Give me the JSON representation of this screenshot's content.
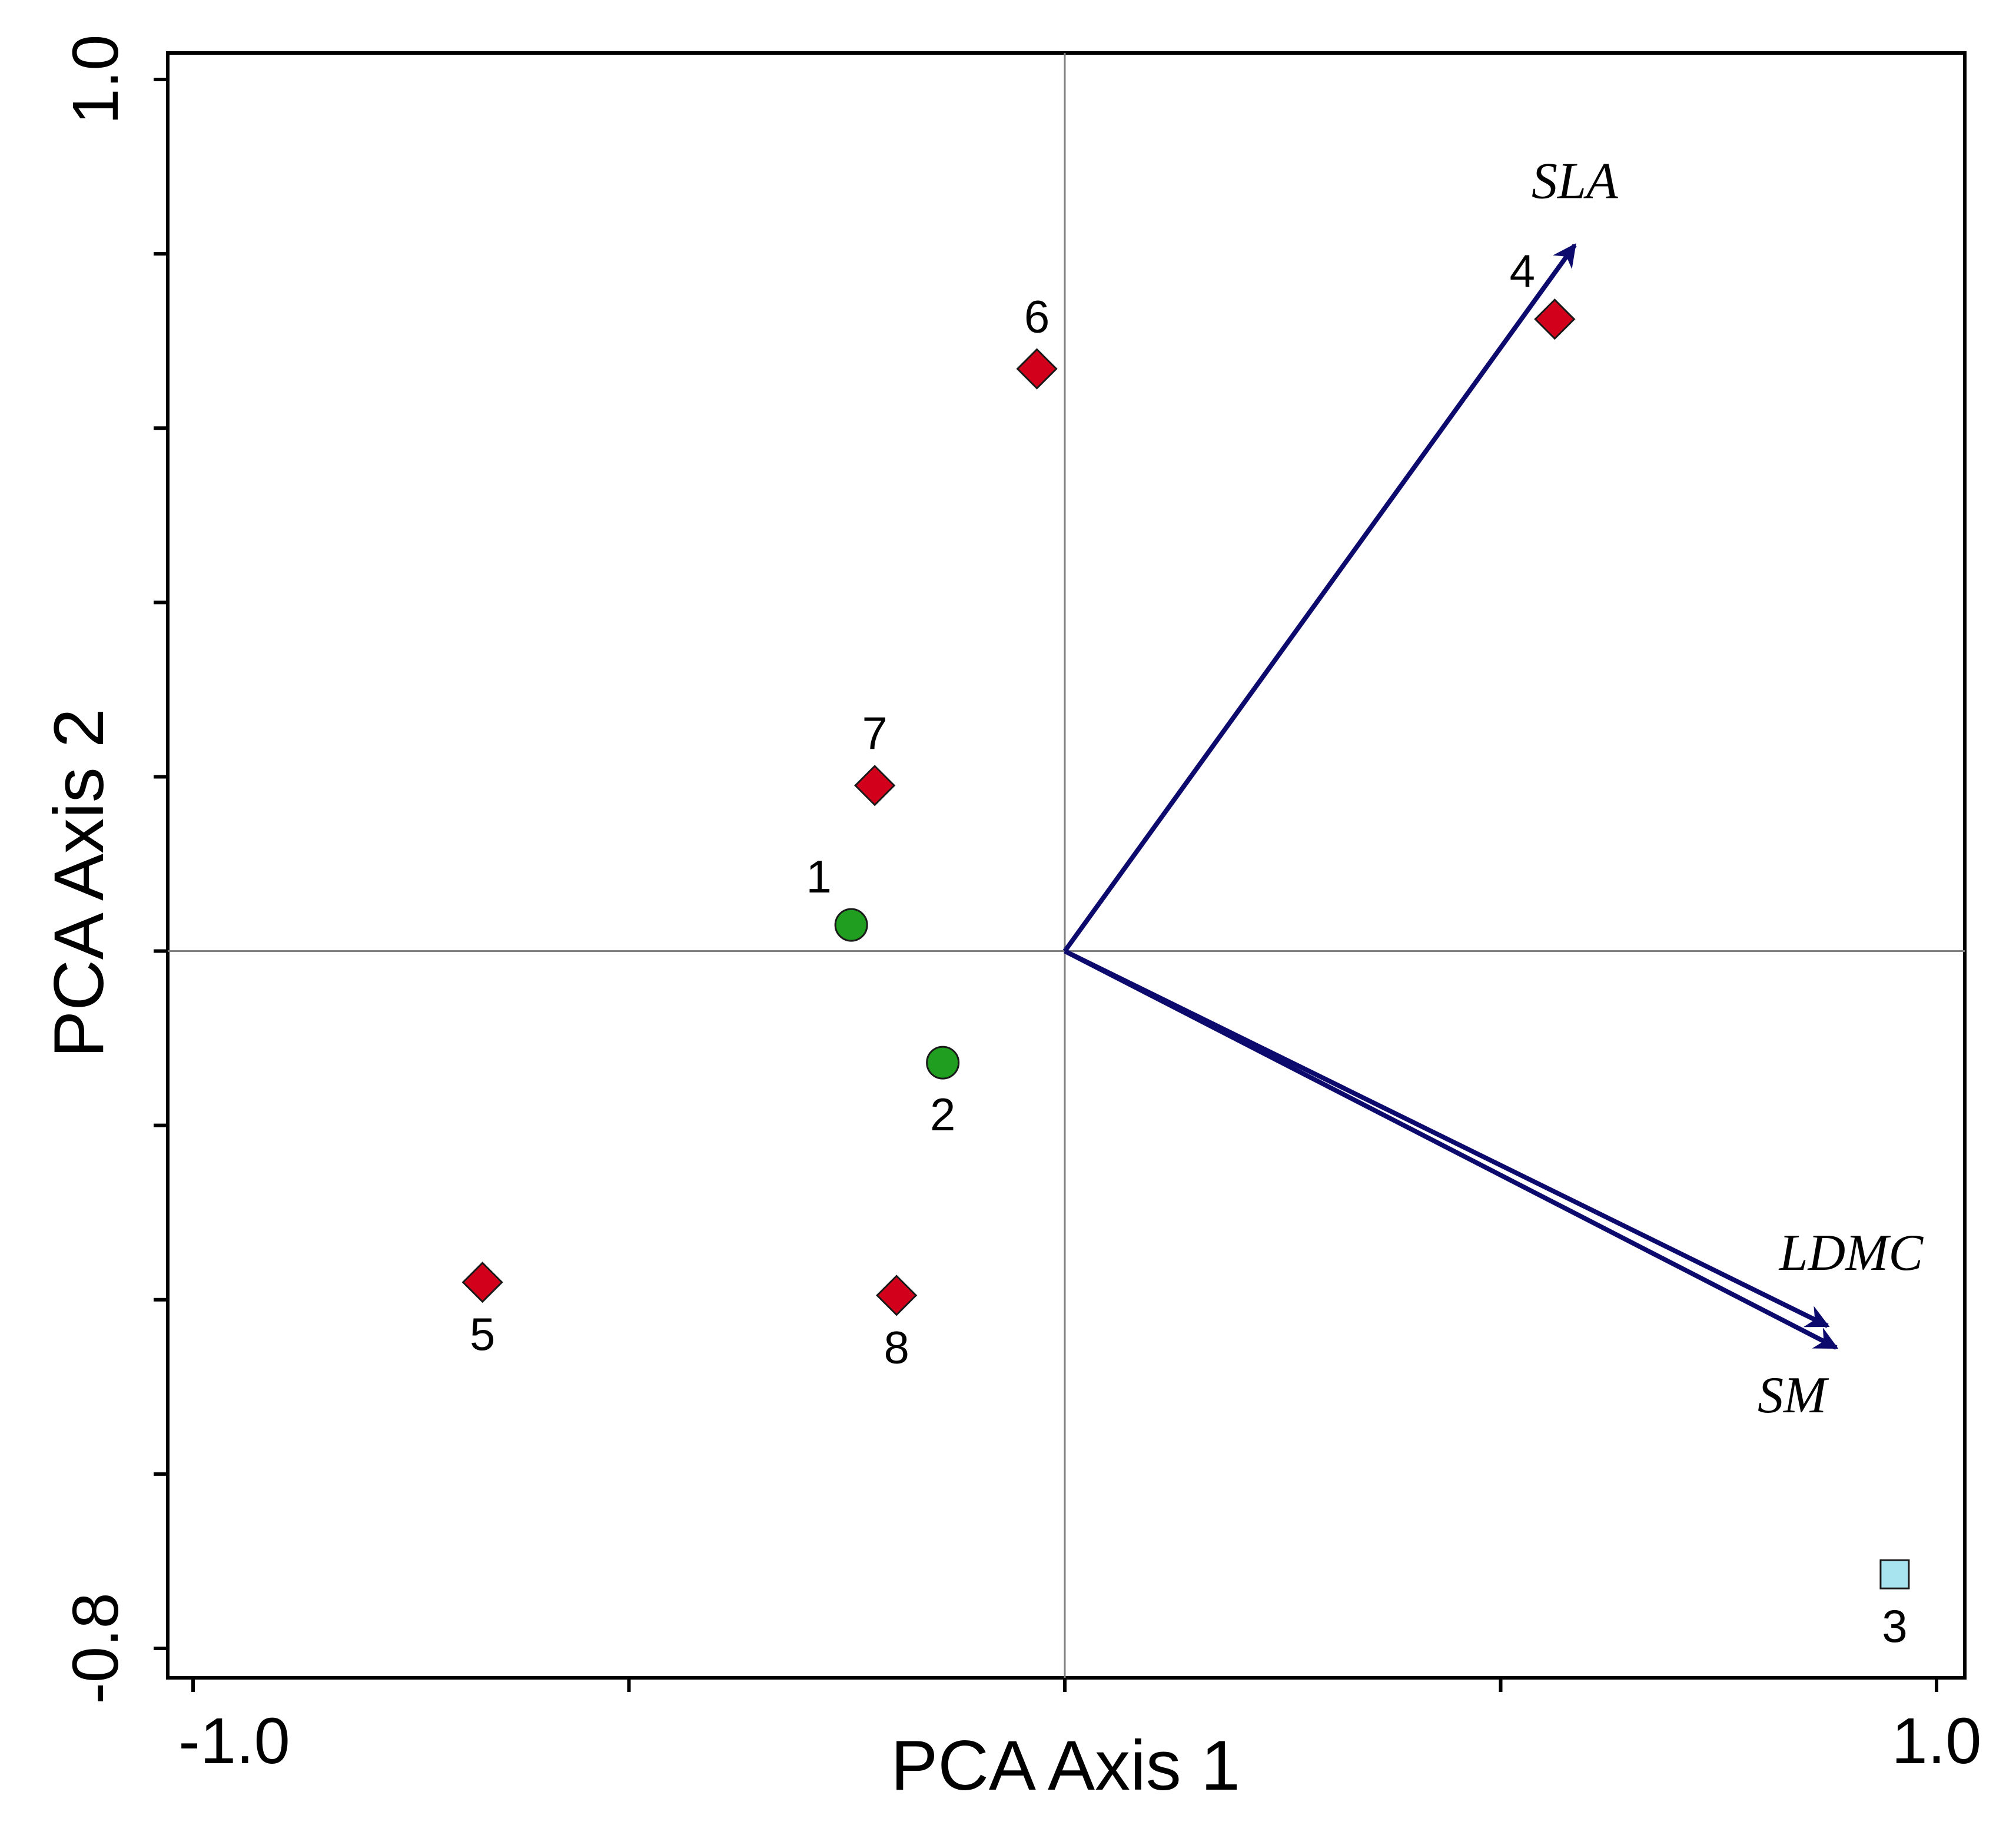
{
  "chart_data": {
    "type": "scatter",
    "title": "",
    "xlabel": "PCA Axis 1",
    "ylabel": "PCA Axis 2",
    "xlim": [
      -1.0,
      1.0
    ],
    "ylim": [
      -0.8,
      1.0
    ],
    "x_tick_labels": [
      {
        "value": -1.0,
        "label": "-1.0"
      },
      {
        "value": 1.0,
        "label": "1.0"
      }
    ],
    "y_tick_labels": [
      {
        "value": -0.8,
        "label": "-0.8"
      },
      {
        "value": 1.0,
        "label": "1.0"
      }
    ],
    "x_ticks": [
      -1.0,
      -0.5,
      0.0,
      0.5,
      1.0
    ],
    "y_ticks": [
      -0.8,
      -0.6,
      -0.4,
      -0.2,
      0.0,
      0.2,
      0.4,
      0.6,
      0.8,
      1.0
    ],
    "grid": false,
    "zero_lines": true,
    "points": [
      {
        "label": "1",
        "x": -0.245,
        "y": 0.03,
        "marker": "circle",
        "color": "#1f9e1f",
        "label_pos": "above-left"
      },
      {
        "label": "2",
        "x": -0.14,
        "y": -0.128,
        "marker": "circle",
        "color": "#1f9e1f",
        "label_pos": "below"
      },
      {
        "label": "3",
        "x": 0.952,
        "y": -0.715,
        "marker": "square",
        "color": "#a8e4ef",
        "label_pos": "below"
      },
      {
        "label": "4",
        "x": 0.562,
        "y": 0.725,
        "marker": "diamond",
        "color": "#d3001b",
        "label_pos": "above-left"
      },
      {
        "label": "5",
        "x": -0.668,
        "y": -0.38,
        "marker": "diamond",
        "color": "#d3001b",
        "label_pos": "below"
      },
      {
        "label": "6",
        "x": -0.032,
        "y": 0.668,
        "marker": "diamond",
        "color": "#d3001b",
        "label_pos": "above"
      },
      {
        "label": "7",
        "x": -0.218,
        "y": 0.19,
        "marker": "diamond",
        "color": "#d3001b",
        "label_pos": "above"
      },
      {
        "label": "8",
        "x": -0.193,
        "y": -0.395,
        "marker": "diamond",
        "color": "#d3001b",
        "label_pos": "below"
      }
    ],
    "vectors": [
      {
        "label": "SLA",
        "x": 0.585,
        "y": 0.81,
        "color": "#0d0a6e"
      },
      {
        "label": "LDMC",
        "x": 0.875,
        "y": -0.43,
        "color": "#0d0a6e"
      },
      {
        "label": "SM",
        "x": 0.885,
        "y": -0.455,
        "color": "#0d0a6e"
      }
    ]
  }
}
